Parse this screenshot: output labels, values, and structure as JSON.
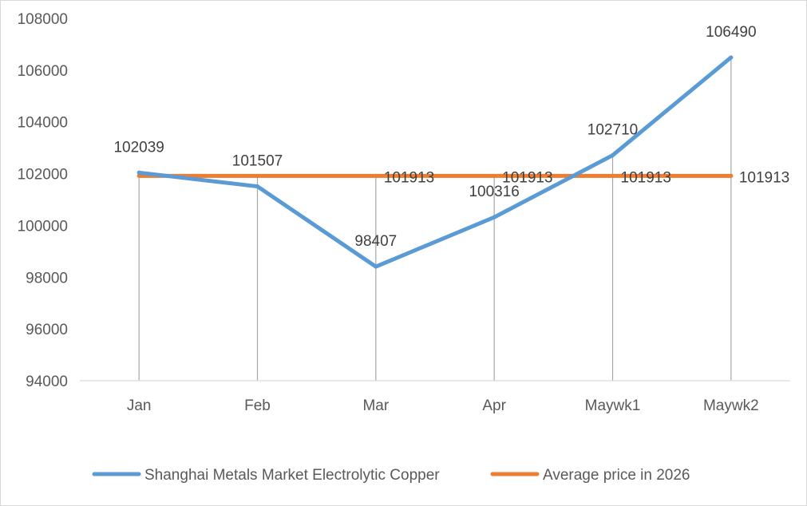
{
  "chart_data": {
    "type": "line",
    "categories": [
      "Jan",
      "Feb",
      "Mar",
      "Apr",
      "Maywk1",
      "Maywk2"
    ],
    "series": [
      {
        "name": "Shanghai Metals Market Electrolytic Copper",
        "values": [
          102039,
          101507,
          98407,
          100316,
          102710,
          106490
        ],
        "color": "#5b9bd5",
        "labels": [
          "102039",
          "101507",
          "98407",
          "100316",
          "102710",
          "106490"
        ]
      },
      {
        "name": "Average price in 2026",
        "values": [
          101913,
          101913,
          101913,
          101913,
          101913,
          101913
        ],
        "color": "#ed7d31",
        "labels": [
          "",
          "",
          "101913",
          "101913",
          "101913",
          "101913"
        ]
      }
    ],
    "ylim": [
      94000,
      108000
    ],
    "yticks": [
      94000,
      96000,
      98000,
      100000,
      102000,
      104000,
      106000,
      108000
    ],
    "ytick_labels": [
      "94000",
      "96000",
      "98000",
      "100000",
      "102000",
      "104000",
      "106000",
      "108000"
    ],
    "grid": "vertical drop lines at each category",
    "legend": "bottom",
    "title": "",
    "xlabel": "",
    "ylabel": ""
  }
}
